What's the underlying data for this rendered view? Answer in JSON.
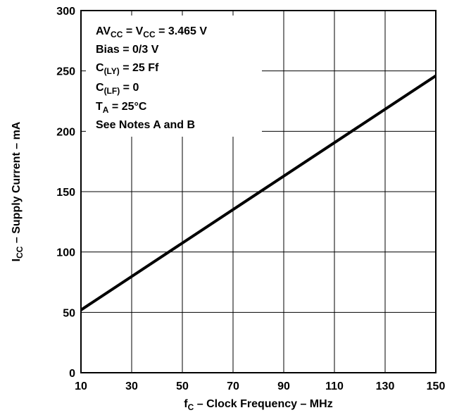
{
  "chart_data": {
    "type": "line",
    "title": "",
    "xlabel": {
      "main": "f",
      "sub": "C",
      "rest": " – Clock Frequency – MHz"
    },
    "ylabel": {
      "main": "I",
      "sub": "CC",
      "rest": " – Supply Current – mA"
    },
    "xlim": [
      10,
      150
    ],
    "ylim": [
      0,
      300
    ],
    "x_ticks": [
      10,
      30,
      50,
      70,
      90,
      110,
      130,
      150
    ],
    "y_ticks": [
      0,
      50,
      100,
      150,
      200,
      250,
      300
    ],
    "grid": true,
    "series": [
      {
        "x": [
          10,
          150
        ],
        "y": [
          52,
          246
        ]
      }
    ],
    "notes": [
      {
        "pre": "AV",
        "sub": "CC",
        "mid": " = V",
        "sub2": "CC",
        "post": " = 3.465 V"
      },
      {
        "pre": "Bias = 0/3 V"
      },
      {
        "pre": "C",
        "sub": "(LY)",
        "post": " = 25 Ff"
      },
      {
        "pre": "C",
        "sub": "(LF)",
        "post": " = 0"
      },
      {
        "pre": "T",
        "sub": "A",
        "post": " = 25°C"
      },
      {
        "pre": "See Notes A and  B"
      }
    ],
    "colors": {
      "line": "#000000",
      "grid": "#000000",
      "notes_background": "#ffffff"
    }
  }
}
